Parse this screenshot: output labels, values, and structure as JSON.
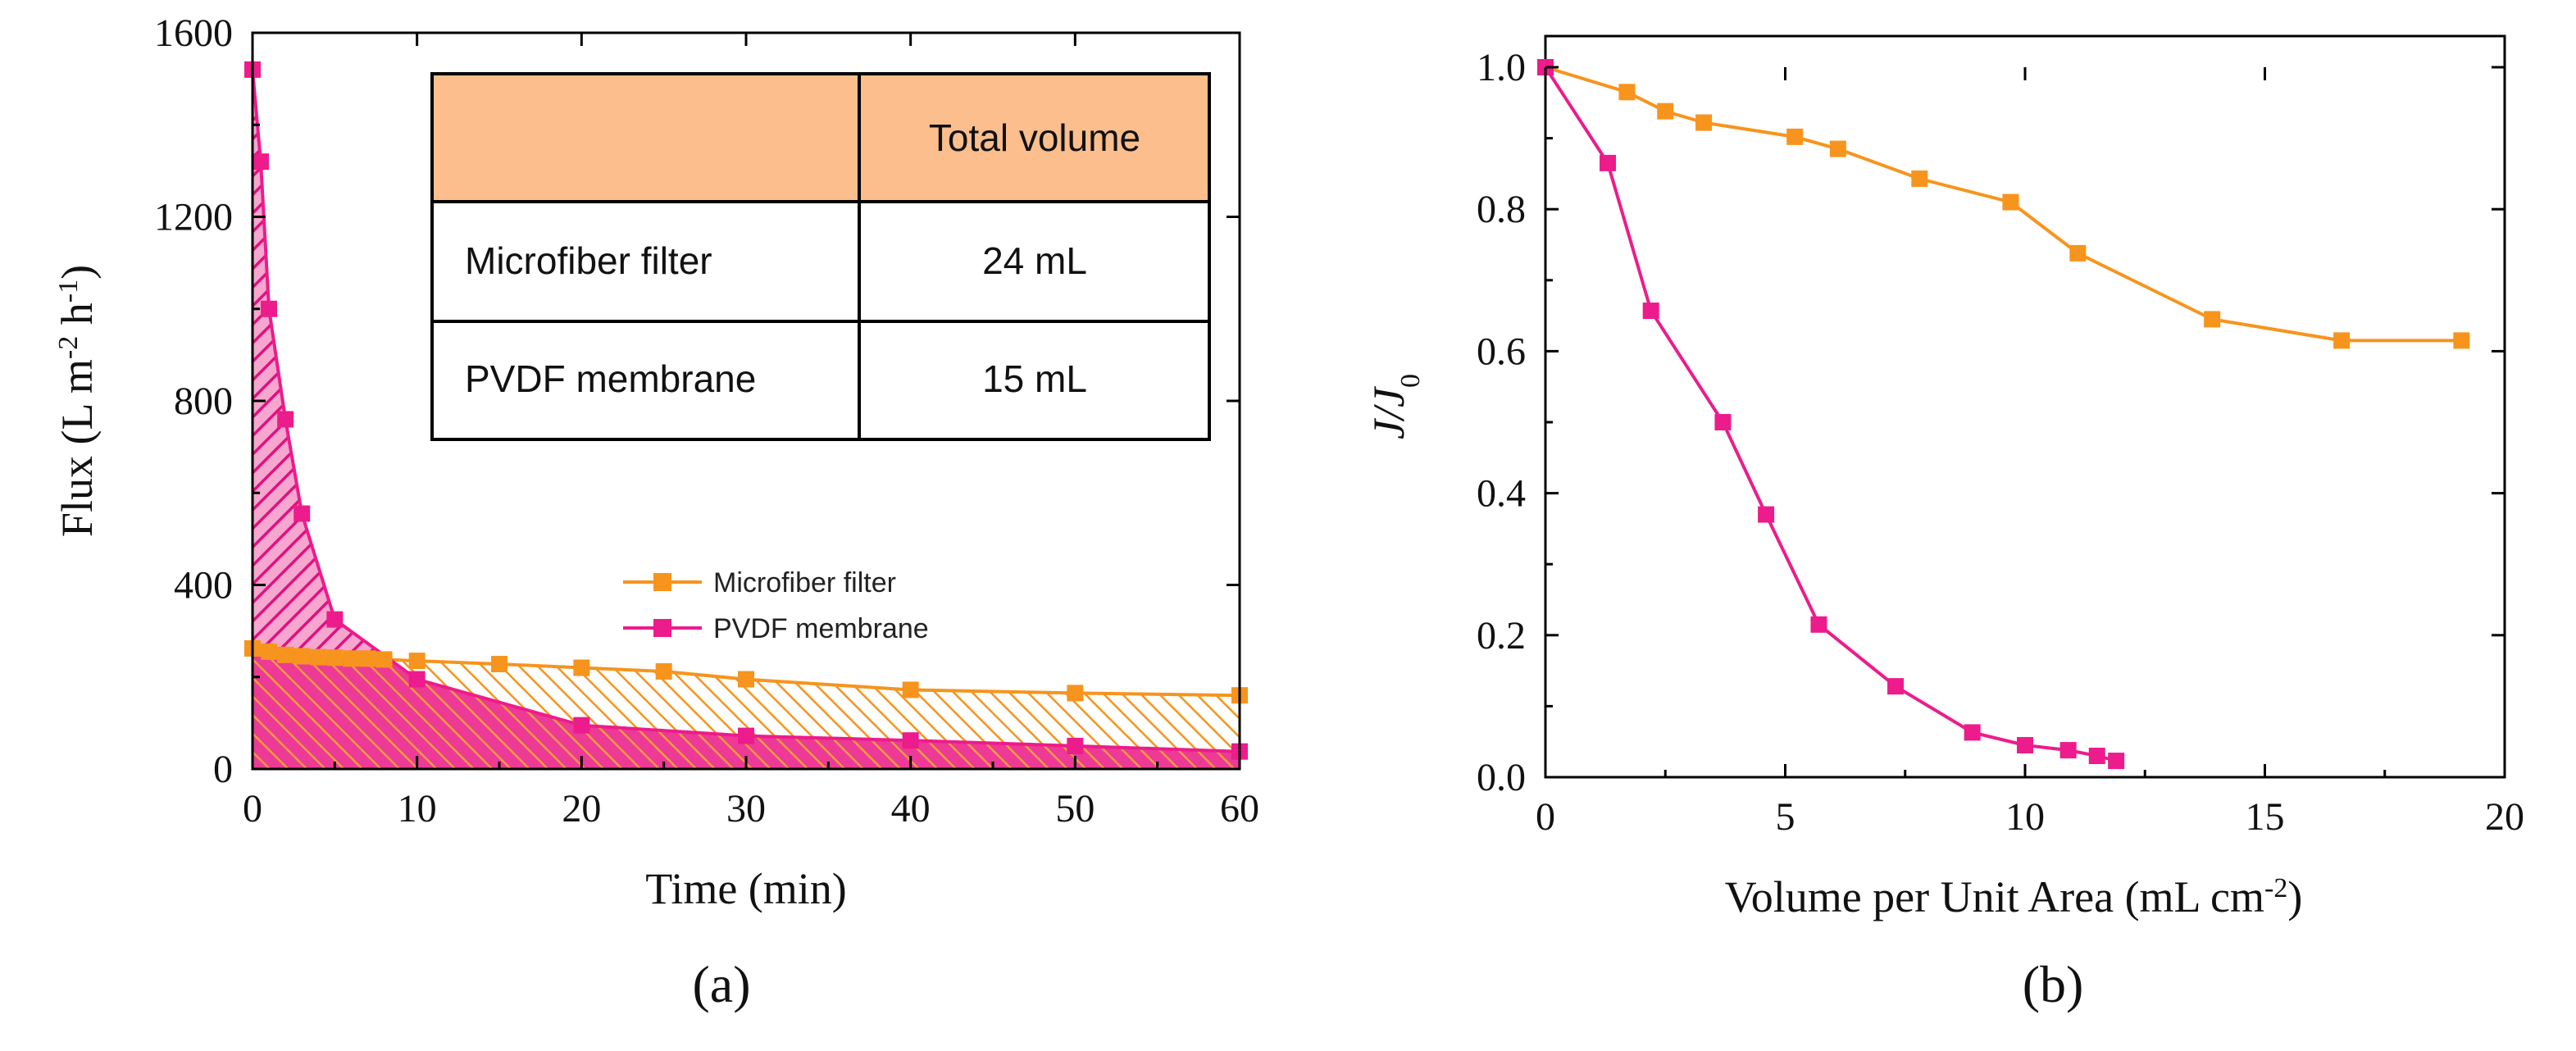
{
  "colors": {
    "microfiber": "#F7941D",
    "pvdf": "#EC1C8C",
    "table_header": "#FBBE8C",
    "axis": "#000000"
  },
  "chart_data": [
    {
      "panel": "(a)",
      "type": "area",
      "xlabel": "Time (min)",
      "ylabel": "Flux (L m-2 h-1)",
      "ylabel_parts": {
        "base": "Flux (L m",
        "sup1": "-2",
        "mid": " h",
        "sup2": "-1",
        "end": ")"
      },
      "xlim": [
        0,
        60
      ],
      "ylim": [
        0,
        1600
      ],
      "xticks": [
        0,
        10,
        20,
        30,
        40,
        50,
        60
      ],
      "yticks": [
        0,
        400,
        800,
        1200,
        1600
      ],
      "legend_position": "center-right",
      "series": [
        {
          "name": "Microfiber filter",
          "color": "#F7941D",
          "x": [
            0,
            1,
            2,
            3,
            4,
            5,
            6,
            7,
            8,
            10,
            15,
            20,
            25,
            30,
            40,
            50,
            60
          ],
          "y": [
            262,
            255,
            248,
            245,
            243,
            242,
            240,
            240,
            238,
            235,
            228,
            220,
            212,
            195,
            172,
            165,
            160
          ]
        },
        {
          "name": "PVDF membrane",
          "color": "#EC1C8C",
          "x": [
            0,
            0.5,
            1,
            2,
            3,
            5,
            10,
            20,
            30,
            40,
            50,
            60
          ],
          "y": [
            1520,
            1320,
            1000,
            760,
            555,
            325,
            195,
            95,
            72,
            62,
            50,
            38
          ]
        }
      ],
      "inset_table": {
        "headers": [
          "",
          "Total volume"
        ],
        "rows": [
          [
            "Microfiber  filter",
            "24 mL"
          ],
          [
            "PVDF membrane",
            "15 mL"
          ]
        ]
      }
    },
    {
      "panel": "(b)",
      "type": "line",
      "xlabel": "Volume per Unit Area (mL cm-2)",
      "xlabel_parts": {
        "base": "Volume per Unit Area (mL cm",
        "sup": "-2",
        "end": ")"
      },
      "ylabel": "J/J0",
      "ylabel_parts": {
        "base": "J/J",
        "sub": "0"
      },
      "xlim": [
        0,
        20
      ],
      "ylim": [
        0,
        1.0
      ],
      "xticks": [
        0,
        5,
        10,
        15,
        20
      ],
      "yticks": [
        0.0,
        0.2,
        0.4,
        0.6,
        0.8,
        1.0
      ],
      "ytick_labels": [
        "0.0",
        "0.2",
        "0.4",
        "0.6",
        "0.8",
        "1.0"
      ],
      "series": [
        {
          "color": "#F7941D",
          "x": [
            0,
            1.7,
            2.5,
            3.3,
            5.2,
            6.1,
            7.8,
            9.7,
            11.1,
            13.9,
            16.6,
            19.1
          ],
          "y": [
            1.0,
            0.965,
            0.938,
            0.922,
            0.902,
            0.885,
            0.843,
            0.81,
            0.738,
            0.645,
            0.615,
            0.615
          ]
        },
        {
          "color": "#EC1C8C",
          "x": [
            0,
            1.3,
            2.2,
            3.7,
            4.6,
            5.7,
            7.3,
            8.9,
            10.0,
            10.9,
            11.5,
            11.9
          ],
          "y": [
            1.0,
            0.865,
            0.657,
            0.5,
            0.37,
            0.215,
            0.128,
            0.063,
            0.045,
            0.038,
            0.03,
            0.023
          ]
        }
      ]
    }
  ]
}
